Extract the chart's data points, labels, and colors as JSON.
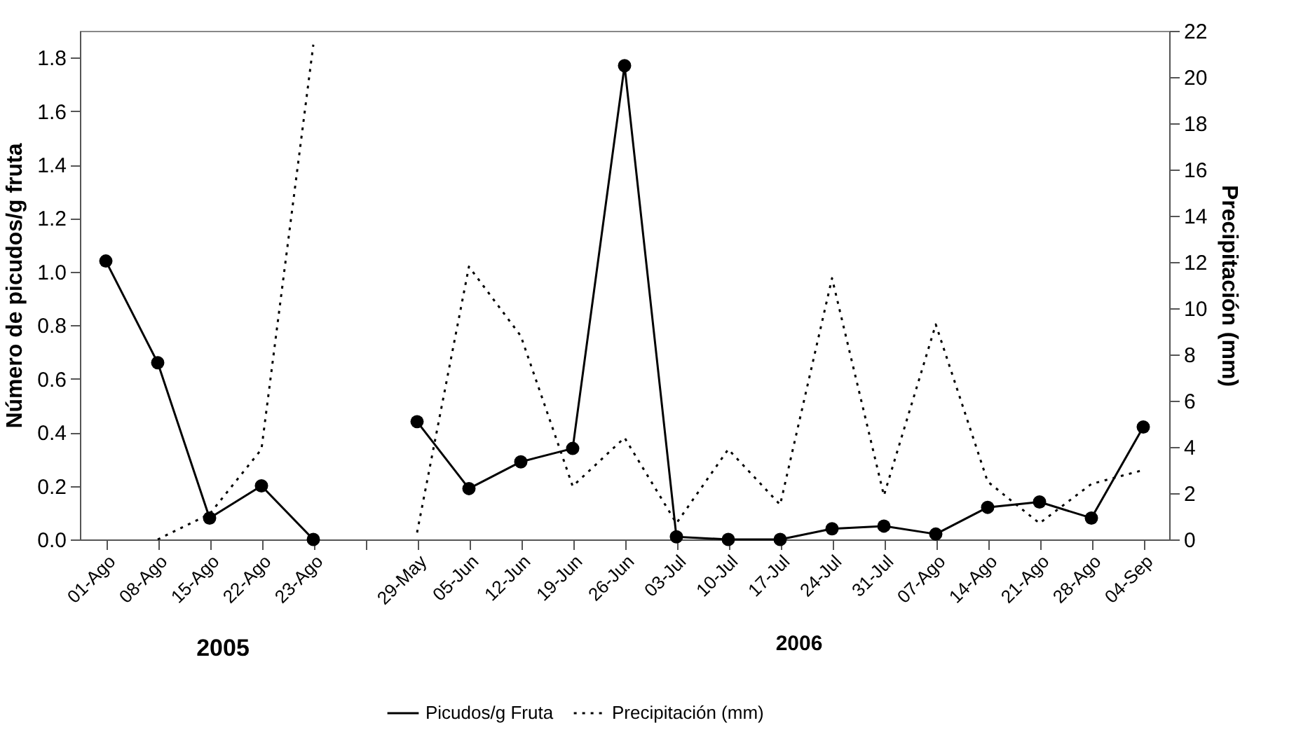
{
  "chart_data": {
    "type": "line",
    "categories": [
      "01-Ago",
      "08-Ago",
      "15-Ago",
      "22-Ago",
      "23-Ago",
      null,
      "29-May",
      "05-Jun",
      "12-Jun",
      "19-Jun",
      "26-Jun",
      "03-Jul",
      "10-Jul",
      "17-Jul",
      "24-Jul",
      "31-Jul",
      "07-Ago",
      "14-Ago",
      "21-Ago",
      "28-Ago",
      "04-Sep"
    ],
    "series": [
      {
        "name": "Picudos/g Fruta",
        "color": "#000000",
        "marker": "circle",
        "line_style": "solid",
        "values": [
          1.04,
          0.66,
          0.08,
          0.2,
          0.0,
          null,
          0.44,
          0.19,
          0.29,
          0.34,
          1.77,
          0.01,
          0.0,
          0.0,
          0.04,
          0.05,
          0.02,
          0.12,
          0.14,
          0.08,
          0.42
        ]
      },
      {
        "name": "Precipitación (mm)",
        "color": "#000000",
        "line_style": "dotted",
        "axis": "y2",
        "values": [
          null,
          0.0,
          1.1,
          3.9,
          21.4,
          null,
          0.3,
          11.8,
          8.8,
          2.3,
          4.4,
          0.7,
          3.9,
          1.5,
          11.3,
          1.9,
          9.3,
          2.5,
          0.7,
          2.4,
          3.0
        ]
      }
    ],
    "ylabel": "Número de picudos/g fruta",
    "y2label": "Precipitación (mm)",
    "ylim": [
      0,
      1.9
    ],
    "yticks": [
      {
        "value": 0,
        "label": "0.0"
      },
      0.2,
      0.4,
      0.6,
      0.8,
      {
        "value": 1,
        "label": "1.0"
      },
      1.2,
      1.4,
      1.6,
      1.8
    ],
    "y2lim": [
      0,
      22
    ],
    "y2ticks": [
      0,
      2,
      4,
      6,
      8,
      10,
      12,
      14,
      16,
      18,
      20,
      22
    ],
    "annotations": [
      "2005",
      "2006"
    ],
    "legend": "bottom"
  }
}
